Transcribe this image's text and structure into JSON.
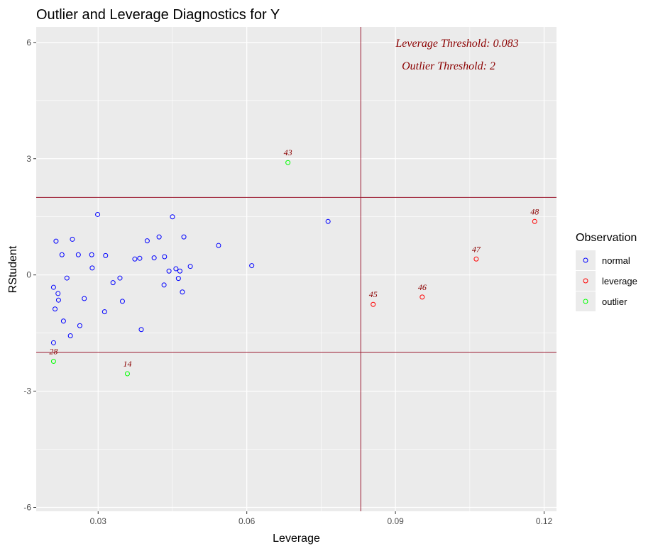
{
  "chart_data": {
    "type": "scatter",
    "title": "Outlier and Leverage Diagnostics for Y",
    "xlabel": "Leverage",
    "ylabel": "RStudent",
    "xlim": [
      0.0175,
      0.1225
    ],
    "ylim": [
      -6.1,
      6.4
    ],
    "x_ticks": [
      0.03,
      0.06,
      0.09,
      0.12
    ],
    "x_tick_labels": [
      "0.03",
      "0.06",
      "0.09",
      "0.12"
    ],
    "y_ticks": [
      -6,
      -3,
      0,
      3,
      6
    ],
    "y_tick_labels": [
      "-6",
      "-3",
      "0",
      "3",
      "6"
    ],
    "grid": true,
    "legend": {
      "title": "Observation",
      "position": "right",
      "entries": [
        {
          "label": "normal",
          "color": "#0000ff"
        },
        {
          "label": "leverage",
          "color": "#ff0000"
        },
        {
          "label": "outlier",
          "color": "#00ff00"
        }
      ]
    },
    "thresholds": {
      "leverage": 0.083,
      "outlier": 2,
      "line_color": "#9b1b30",
      "leverage_text": "Leverage Threshold: 0.083",
      "outlier_text": "Outlier Threshold: 2",
      "text_color": "#8b0000"
    },
    "series": [
      {
        "name": "normal",
        "color": "#0000ff",
        "points": [
          {
            "x": 0.021,
            "y": -0.32
          },
          {
            "x": 0.021,
            "y": -1.75
          },
          {
            "x": 0.0213,
            "y": -0.88
          },
          {
            "x": 0.0215,
            "y": 0.87
          },
          {
            "x": 0.0219,
            "y": -0.48
          },
          {
            "x": 0.022,
            "y": -0.65
          },
          {
            "x": 0.0227,
            "y": 0.52
          },
          {
            "x": 0.023,
            "y": -1.19
          },
          {
            "x": 0.0237,
            "y": -0.08
          },
          {
            "x": 0.0244,
            "y": -1.57
          },
          {
            "x": 0.0248,
            "y": 0.92
          },
          {
            "x": 0.026,
            "y": 0.52
          },
          {
            "x": 0.0263,
            "y": -1.31
          },
          {
            "x": 0.0272,
            "y": -0.61
          },
          {
            "x": 0.0287,
            "y": 0.52
          },
          {
            "x": 0.0288,
            "y": 0.18
          },
          {
            "x": 0.0299,
            "y": 1.56
          },
          {
            "x": 0.0313,
            "y": -0.95
          },
          {
            "x": 0.0315,
            "y": 0.5
          },
          {
            "x": 0.033,
            "y": -0.2
          },
          {
            "x": 0.0344,
            "y": -0.08
          },
          {
            "x": 0.0349,
            "y": -0.68
          },
          {
            "x": 0.0374,
            "y": 0.41
          },
          {
            "x": 0.0384,
            "y": 0.43
          },
          {
            "x": 0.0387,
            "y": -1.41
          },
          {
            "x": 0.0399,
            "y": 0.88
          },
          {
            "x": 0.0413,
            "y": 0.44
          },
          {
            "x": 0.0423,
            "y": 0.98
          },
          {
            "x": 0.0433,
            "y": -0.26
          },
          {
            "x": 0.0434,
            "y": 0.47
          },
          {
            "x": 0.0443,
            "y": 0.1
          },
          {
            "x": 0.045,
            "y": 1.5
          },
          {
            "x": 0.0457,
            "y": 0.16
          },
          {
            "x": 0.0462,
            "y": -0.09
          },
          {
            "x": 0.0465,
            "y": 0.1
          },
          {
            "x": 0.047,
            "y": -0.44
          },
          {
            "x": 0.0473,
            "y": 0.98
          },
          {
            "x": 0.0486,
            "y": 0.22
          },
          {
            "x": 0.0543,
            "y": 0.76
          },
          {
            "x": 0.061,
            "y": 0.24
          },
          {
            "x": 0.0764,
            "y": 1.38
          }
        ]
      },
      {
        "name": "leverage",
        "color": "#ff0000",
        "points": [
          {
            "x": 0.0855,
            "y": -0.76,
            "label": "45"
          },
          {
            "x": 0.0954,
            "y": -0.57,
            "label": "46"
          },
          {
            "x": 0.1063,
            "y": 0.41,
            "label": "47"
          },
          {
            "x": 0.1181,
            "y": 1.38,
            "label": "48"
          }
        ]
      },
      {
        "name": "outlier",
        "color": "#00ff00",
        "points": [
          {
            "x": 0.0683,
            "y": 2.9,
            "label": "43"
          },
          {
            "x": 0.021,
            "y": -2.23,
            "label": "28"
          },
          {
            "x": 0.0359,
            "y": -2.55,
            "label": "14"
          }
        ]
      }
    ]
  }
}
